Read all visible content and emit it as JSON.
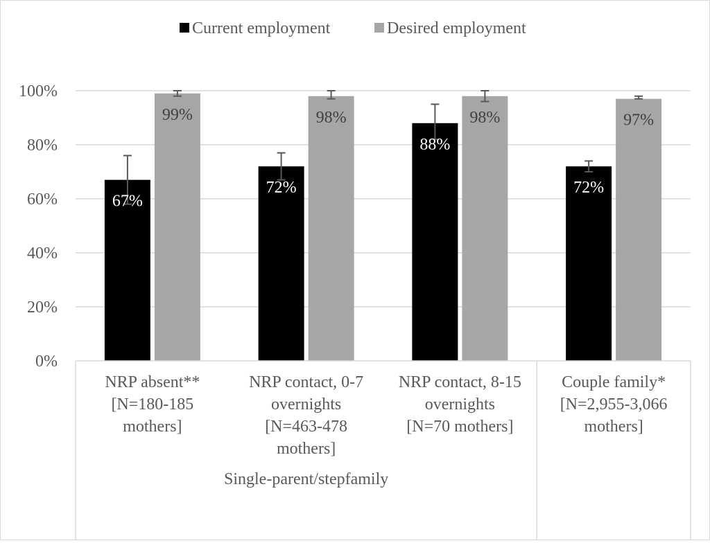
{
  "chart_data": {
    "type": "bar",
    "title": "",
    "ylim": [
      0,
      100
    ],
    "y_ticks": [
      "0%",
      "20%",
      "40%",
      "60%",
      "80%",
      "100%"
    ],
    "grid": true,
    "legend_position": "top",
    "categories": [
      {
        "lines": [
          "NRP absent**",
          "[N=180-185",
          "mothers]"
        ],
        "group": 0
      },
      {
        "lines": [
          "NRP contact, 0-7",
          "overnights",
          "[N=463-478",
          "mothers]"
        ],
        "group": 0
      },
      {
        "lines": [
          "NRP contact, 8-15",
          "overnights",
          "[N=70 mothers]"
        ],
        "group": 0
      },
      {
        "lines": [
          "Couple family*",
          "[N=2,955-3,066",
          "mothers]"
        ],
        "group": 1
      }
    ],
    "groups": [
      {
        "label": "Single-parent/stepfamily"
      },
      {
        "label": ""
      }
    ],
    "series": [
      {
        "name": "Current employment",
        "color": "#000000",
        "label_color": "#ffffff",
        "values": [
          67,
          72,
          88,
          72
        ],
        "labels": [
          "67%",
          "72%",
          "88%",
          "72%"
        ],
        "err_low": [
          58,
          67,
          82,
          70
        ],
        "err_high": [
          76,
          77,
          95,
          74
        ]
      },
      {
        "name": "Desired employment",
        "color": "#a6a6a6",
        "label_color": "#404040",
        "values": [
          99,
          98,
          98,
          97
        ],
        "labels": [
          "99%",
          "98%",
          "98%",
          "97%"
        ],
        "err_low": [
          98,
          97,
          96,
          97
        ],
        "err_high": [
          100,
          100,
          100,
          98
        ]
      }
    ]
  }
}
